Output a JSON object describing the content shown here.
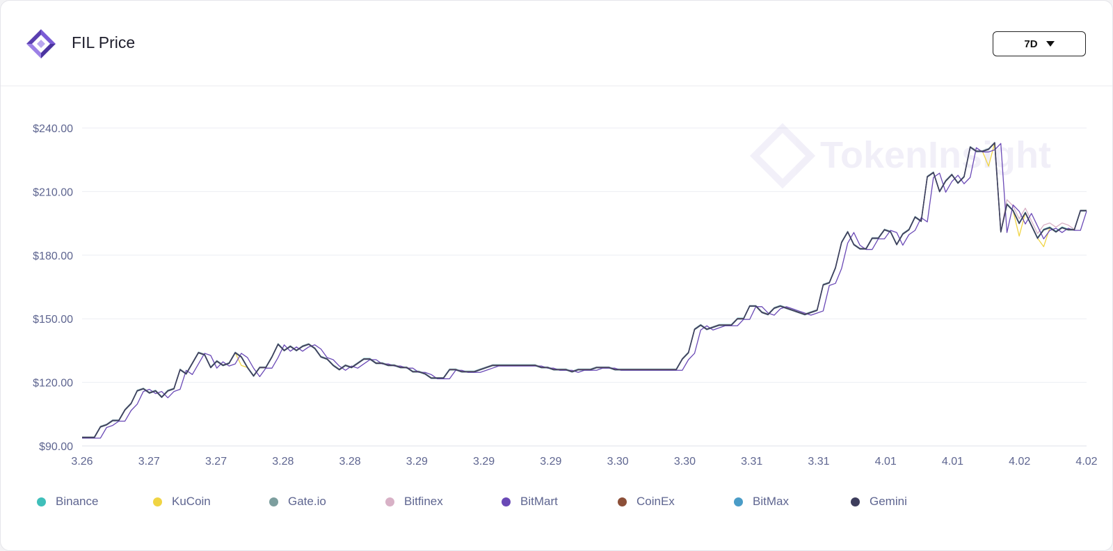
{
  "header": {
    "title": "FIL Price",
    "range_select": "7D"
  },
  "watermark": "TokenInsight",
  "chart_data": {
    "type": "line",
    "title": "FIL Price",
    "y_ticks": [
      "$90.00",
      "$120.00",
      "$150.00",
      "$180.00",
      "$210.00",
      "$240.00"
    ],
    "ylim": [
      90,
      240
    ],
    "x_tick_labels": [
      "3.26",
      "3.27",
      "3.27",
      "3.28",
      "3.28",
      "3.29",
      "3.29",
      "3.29",
      "3.30",
      "3.30",
      "3.31",
      "3.31",
      "4.01",
      "4.01",
      "4.02",
      "4.02"
    ],
    "grid": true,
    "legend_position": "bottom",
    "base_series": [
      94,
      94,
      94,
      99,
      100,
      102,
      102,
      107,
      110,
      116,
      117,
      115,
      116,
      113,
      116,
      117,
      126,
      124,
      129,
      134,
      133,
      127,
      130,
      128,
      129,
      134,
      132,
      127,
      123,
      127,
      127,
      132,
      138,
      135,
      137,
      135,
      137,
      138,
      136,
      132,
      131,
      128,
      126,
      128,
      127,
      129,
      131,
      131,
      129,
      129,
      128,
      128,
      127,
      127,
      125,
      125,
      124,
      122,
      122,
      122,
      126,
      126,
      125,
      125,
      125,
      126,
      127,
      128,
      128,
      128,
      128,
      128,
      128,
      128,
      128,
      127,
      127,
      126,
      126,
      126,
      125,
      126,
      126,
      126,
      127,
      127,
      127,
      126,
      126,
      126,
      126,
      126,
      126,
      126,
      126,
      126,
      126,
      126,
      131,
      134,
      145,
      147,
      145,
      146,
      147,
      147,
      147,
      150,
      150,
      156,
      156,
      153,
      152,
      155,
      156,
      155,
      154,
      153,
      152,
      153,
      154,
      166,
      167,
      174,
      186,
      191,
      185,
      183,
      183,
      188,
      188,
      192,
      191,
      185,
      190,
      192,
      198,
      196,
      217,
      219,
      210,
      215,
      218,
      214,
      217,
      231,
      229,
      229,
      230,
      233,
      191,
      204,
      201,
      195,
      200,
      194,
      188,
      192,
      193,
      191,
      193,
      192,
      192,
      201,
      201
    ],
    "series": [
      {
        "name": "Binance",
        "color": "#3fbfba",
        "offset": 0.3,
        "variance": []
      },
      {
        "name": "KuCoin",
        "color": "#f0d443",
        "offset": 0.0,
        "variance": []
      },
      {
        "name": "Gate.io",
        "color": "#7c9e9e",
        "offset": -0.2,
        "variance": []
      },
      {
        "name": "Bitfinex",
        "color": "#d8b1c6",
        "offset": 0.2,
        "variance": []
      },
      {
        "name": "BitMart",
        "color": "#6a49b6",
        "offset": -0.3,
        "variance": []
      },
      {
        "name": "CoinEx",
        "color": "#8c4f38",
        "offset": 0.1,
        "variance": []
      },
      {
        "name": "BitMax",
        "color": "#4a9cc7",
        "offset": 0.0,
        "variance": []
      },
      {
        "name": "Gemini",
        "color": "#3d3d5c",
        "offset": 0.0,
        "variance": []
      }
    ]
  }
}
